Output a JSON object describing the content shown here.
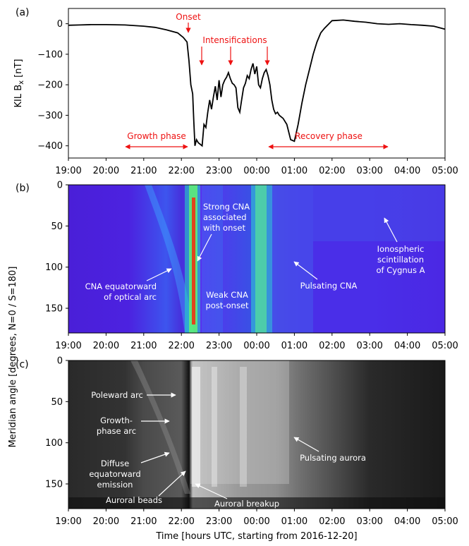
{
  "figure": {
    "xlabel": "Time [hours UTC, starting from 2016-12-20]",
    "ylabel_shared": "Meridian angle [degrees, N=0 / S=180]"
  },
  "chart_data": [
    {
      "panel": "(a)",
      "type": "line",
      "ylabel": "KIL B",
      "ylabel_sub": "x",
      "ylabel_unit": " [nT]",
      "x_tick_labels": [
        "19:00",
        "20:00",
        "21:00",
        "22:00",
        "23:00",
        "00:00",
        "01:00",
        "02:00",
        "03:00",
        "04:00",
        "05:00"
      ],
      "x_range_hours": [
        0,
        10
      ],
      "ylim": [
        -440,
        50
      ],
      "yticks": [
        0,
        -100,
        -200,
        -300,
        -400
      ],
      "series": [
        {
          "x_hours": [
            0,
            0.3,
            0.6,
            1.0,
            1.5,
            2.0,
            2.3,
            2.6,
            2.9,
            3.05,
            3.15,
            3.2,
            3.25,
            3.3,
            3.33,
            3.36,
            3.4,
            3.45,
            3.5,
            3.55,
            3.6,
            3.65,
            3.7,
            3.75,
            3.8,
            3.85,
            3.9,
            3.95,
            4.0,
            4.05,
            4.1,
            4.15,
            4.2,
            4.25,
            4.3,
            4.35,
            4.4,
            4.45,
            4.5,
            4.55,
            4.6,
            4.65,
            4.7,
            4.75,
            4.8,
            4.85,
            4.9,
            4.95,
            5.0,
            5.05,
            5.1,
            5.15,
            5.2,
            5.25,
            5.3,
            5.35,
            5.4,
            5.45,
            5.5,
            5.55,
            5.6,
            5.7,
            5.8,
            5.9,
            6.0,
            6.1,
            6.2,
            6.3,
            6.4,
            6.5,
            6.6,
            6.7,
            6.8,
            7.0,
            7.3,
            7.6,
            7.9,
            8.2,
            8.5,
            8.8,
            9.1,
            9.4,
            9.7,
            10.0
          ],
          "y_nT": [
            -5,
            -4,
            -3,
            -3,
            -4,
            -8,
            -12,
            -20,
            -30,
            -45,
            -60,
            -120,
            -200,
            -230,
            -320,
            -400,
            -380,
            -390,
            -395,
            -400,
            -330,
            -340,
            -290,
            -250,
            -280,
            -240,
            -205,
            -250,
            -185,
            -240,
            -200,
            -185,
            -175,
            -160,
            -180,
            -195,
            -200,
            -210,
            -275,
            -290,
            -250,
            -210,
            -195,
            -170,
            -180,
            -150,
            -130,
            -165,
            -140,
            -200,
            -210,
            -180,
            -160,
            -150,
            -170,
            -200,
            -250,
            -280,
            -295,
            -290,
            -300,
            -310,
            -330,
            -380,
            -385,
            -330,
            -260,
            -200,
            -150,
            -100,
            -60,
            -30,
            -15,
            10,
            12,
            8,
            5,
            0,
            -2,
            0,
            -3,
            -5,
            -8,
            -18
          ]
        }
      ],
      "annotations": [
        "Onset",
        "Intensifications",
        "Growth phase",
        "Recovery phase"
      ]
    },
    {
      "panel": "(b)",
      "type": "heatmap",
      "ylim": [
        0,
        180
      ],
      "yticks": [
        0,
        50,
        100,
        150
      ],
      "x_tick_labels": [
        "19:00",
        "20:00",
        "21:00",
        "22:00",
        "23:00",
        "00:00",
        "01:00",
        "02:00",
        "03:00",
        "04:00",
        "05:00"
      ],
      "annotations": [
        "Strong CNA associated with onset",
        "CNA equatorward of optical arc",
        "Weak CNA post-onset",
        "Pulsating CNA",
        "Ionospheric scintillation of Cygnus A"
      ]
    },
    {
      "panel": "(c)",
      "type": "heatmap",
      "ylim": [
        0,
        180
      ],
      "yticks": [
        0,
        50,
        100,
        150
      ],
      "x_tick_labels": [
        "19:00",
        "20:00",
        "21:00",
        "22:00",
        "23:00",
        "00:00",
        "01:00",
        "02:00",
        "03:00",
        "04:00",
        "05:00"
      ],
      "annotations": [
        "Poleward arc",
        "Growth-phase arc",
        "Diffuse equatorward emission",
        "Auroral beads",
        "Auroral breakup",
        "Pulsating aurora"
      ]
    }
  ],
  "text": {
    "a_label": "(a)",
    "b_label": "(b)",
    "c_label": "(c)",
    "onset": "Onset",
    "intens": "Intensifications",
    "growth": "Growth phase",
    "recovery": "Recovery phase",
    "cna1": "Strong CNA",
    "cna2": "associated",
    "cna3": "with onset",
    "cnaeq1": "CNA equatorward",
    "cnaeq2": "of optical arc",
    "weak1": "Weak CNA",
    "weak2": "post-onset",
    "pulsc": "Pulsating CNA",
    "iono1": "Ionospheric",
    "iono2": "scintillation",
    "iono3": "of Cygnus A",
    "poleward": "Poleward arc",
    "gp1": "Growth-",
    "gp2": "phase arc",
    "diff1": "Diffuse",
    "diff2": "equatorward",
    "diff3": "emission",
    "beads": "Auroral beads",
    "breakup": "Auroral breakup",
    "pulsa": "Pulsating aurora"
  },
  "colors": {
    "red": "#ee1111",
    "line": "#000000",
    "white": "#ffffff"
  }
}
